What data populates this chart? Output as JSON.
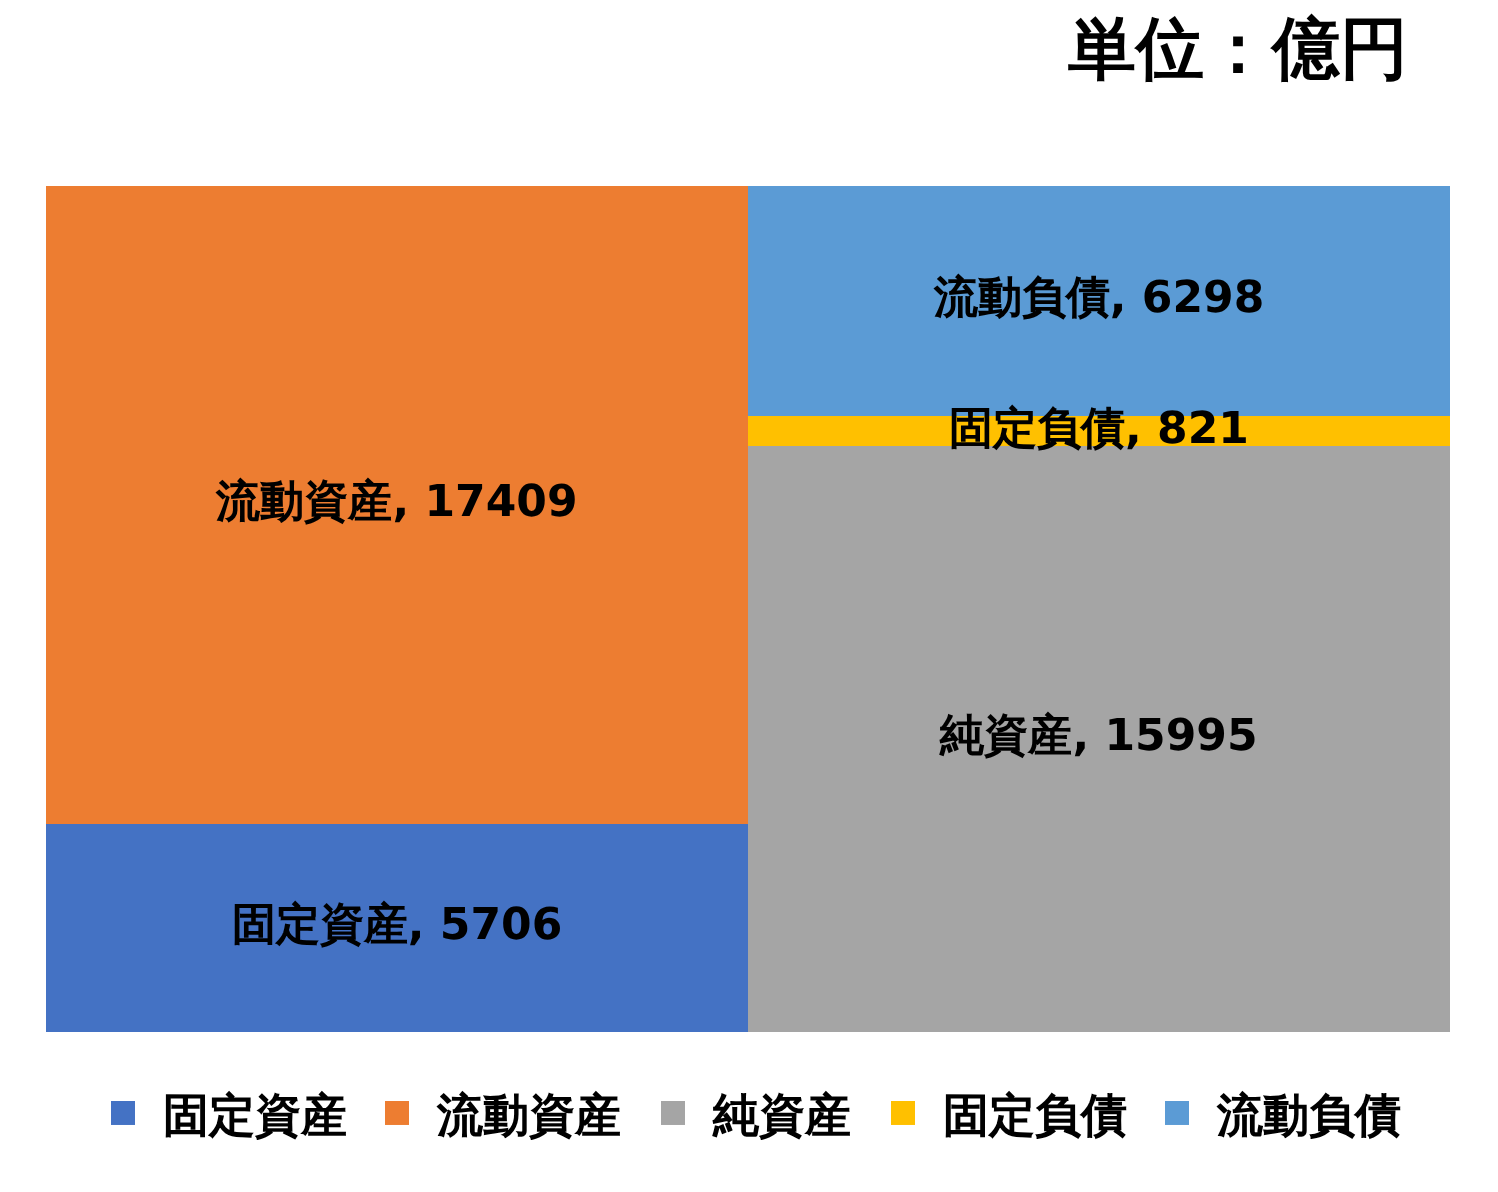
{
  "chart_data": {
    "type": "bar",
    "stacked": true,
    "title": "単位：億円",
    "categories": [
      null,
      null
    ],
    "series": [
      {
        "name": "固定資産",
        "color": "#4472c4",
        "values": [
          5706,
          null
        ],
        "value_labels": [
          "固定資産, 5706",
          null
        ]
      },
      {
        "name": "流動資産",
        "color": "#ed7d31",
        "values": [
          17409,
          null
        ],
        "value_labels": [
          "流動資産, 17409",
          null
        ]
      },
      {
        "name": "純資産",
        "color": "#a5a5a5",
        "values": [
          null,
          15995
        ],
        "value_labels": [
          null,
          "純資産, 15995"
        ]
      },
      {
        "name": "固定負債",
        "color": "#ffc000",
        "values": [
          null,
          821
        ],
        "value_labels": [
          null,
          "固定負債, 821"
        ]
      },
      {
        "name": "流動負債",
        "color": "#5b9bd5",
        "values": [
          null,
          6298
        ],
        "value_labels": [
          null,
          "流動負債, 6298"
        ]
      }
    ],
    "legend": "bottom"
  }
}
